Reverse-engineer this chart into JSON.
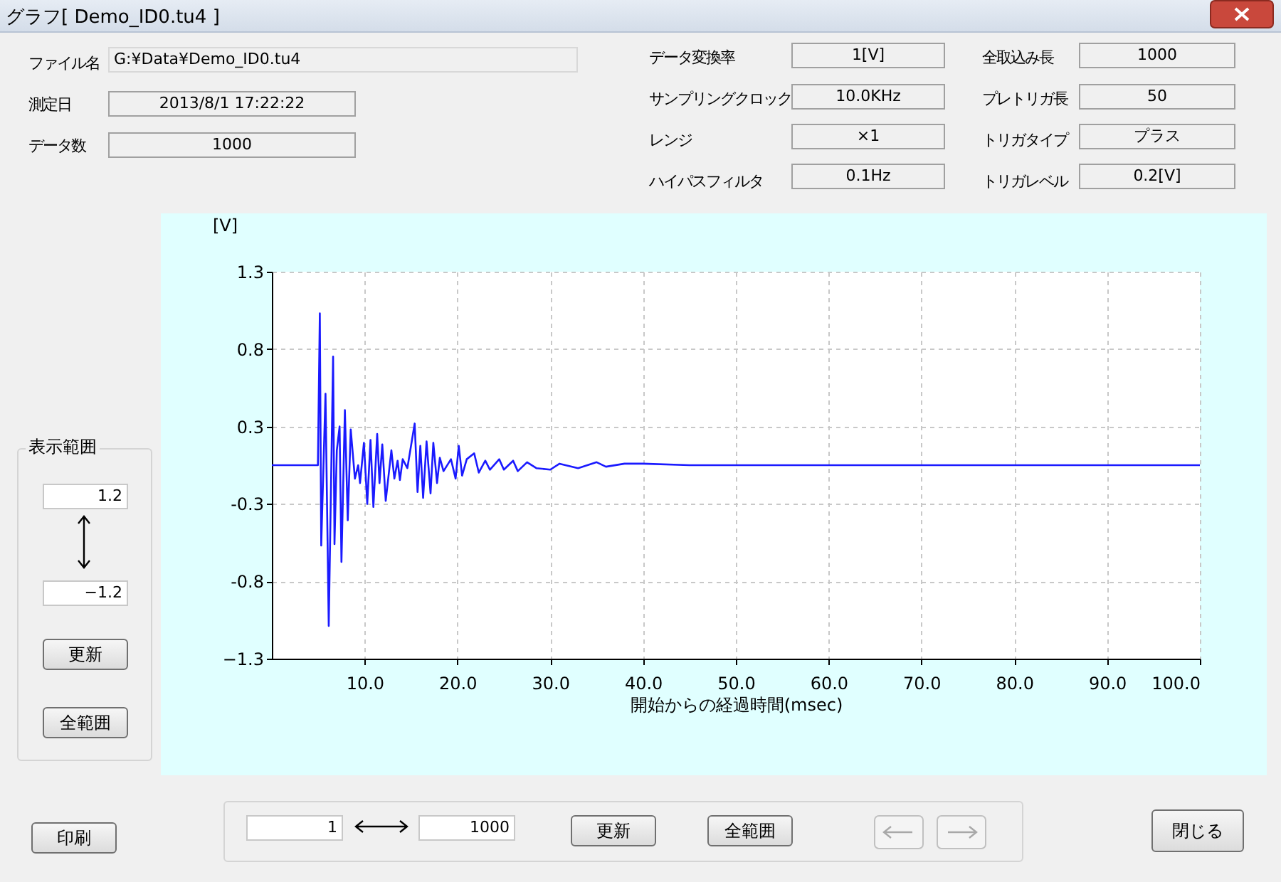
{
  "chart_data": {
    "type": "line",
    "title": "グラフ[ Demo_ID0.tu4 ]",
    "xlabel": "開始からの経過時間(msec)",
    "ylabel": "[V]",
    "x": [
      0,
      4.96,
      5.17,
      5.32,
      5.78,
      6.13,
      6.6,
      6.75,
      7.0,
      7.3,
      7.5,
      7.87,
      8.18,
      8.5,
      8.95,
      9.3,
      9.5,
      9.92,
      10.28,
      10.63,
      10.94,
      11.35,
      11.6,
      11.9,
      12.27,
      12.88,
      13.2,
      13.55,
      13.8,
      14.1,
      14.6,
      15.39,
      15.7,
      16.0,
      16.3,
      16.67,
      17.1,
      17.4,
      17.8,
      18.1,
      18.5,
      19.3,
      19.8,
      20.14,
      20.5,
      21.0,
      21.8,
      22.3,
      23.0,
      23.5,
      24.5,
      25.0,
      26.0,
      26.5,
      27.5,
      28.5,
      30,
      31,
      33,
      35,
      36,
      38,
      40,
      45,
      60,
      80,
      100
    ],
    "values": [
      0,
      0,
      1.02,
      -0.54,
      0.48,
      -1.08,
      0.73,
      -0.53,
      0.1,
      0.26,
      -0.65,
      0.37,
      -0.37,
      0.24,
      -0.09,
      0,
      -0.12,
      0.15,
      -0.26,
      0.17,
      -0.28,
      0.21,
      -0.12,
      0.14,
      -0.24,
      0.1,
      -0.09,
      0.03,
      -0.1,
      0.04,
      -0.02,
      0.28,
      -0.18,
      0.13,
      -0.22,
      0.16,
      -0.19,
      0.15,
      -0.12,
      0.05,
      -0.04,
      0.04,
      -0.09,
      0.13,
      -0.07,
      0.04,
      0.08,
      -0.05,
      0.03,
      -0.03,
      0.04,
      -0.03,
      0.03,
      -0.04,
      0.02,
      -0.02,
      -0.03,
      0.01,
      -0.02,
      0.02,
      -0.01,
      0.01,
      0.01,
      0,
      0,
      0,
      0
    ],
    "color": "#1a1aff",
    "line_style": "solid",
    "grid": true,
    "xlim": [
      0,
      100
    ],
    "xticks": [
      {
        "value": 10,
        "label": "10.0"
      },
      {
        "value": 20,
        "label": "20.0"
      },
      {
        "value": 30,
        "label": "30.0"
      },
      {
        "value": 40,
        "label": "40.0"
      },
      {
        "value": 50,
        "label": "50.0"
      },
      {
        "value": 60,
        "label": "60.0"
      },
      {
        "value": 70,
        "label": "70.0"
      },
      {
        "value": 80,
        "label": "80.0"
      },
      {
        "value": 90,
        "label": "90.0"
      },
      {
        "value": 100,
        "label": "100.0"
      }
    ],
    "ylim": [
      -1.3,
      1.3
    ],
    "yticks": [
      -1.3,
      {
        "value": -0.78,
        "label": "-0.8"
      },
      {
        "value": -0.26,
        "label": "-0.3"
      },
      {
        "value": 0.26,
        "label": "0.3"
      },
      {
        "value": 0.78,
        "label": "0.8"
      },
      1.3
    ],
    "annotations": [
      "ファイル名",
      "G:¥Data¥Demo_ID0.tu4",
      "測定日",
      "2013/8/1 17:22:22",
      "データ数",
      "1000",
      "データ変換率",
      "1[V]",
      "サンプリングクロック",
      "10.0KHz",
      "レンジ",
      "×1",
      "ハイパスフィルタ",
      "0.1Hz",
      "全取込み長",
      "1000",
      "プレトリガ長",
      "50",
      "トリガタイプ",
      "プラス",
      "トリガレベル",
      "0.2[V]",
      "表示範囲",
      "1.2",
      "−1.2",
      "更新",
      "全範囲",
      "印刷",
      "1",
      "1000",
      "更新",
      "全範囲",
      "閉じる"
    ]
  }
}
